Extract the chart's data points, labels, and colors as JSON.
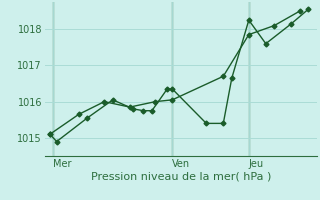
{
  "xlabel": "Pression niveau de la mer( hPa )",
  "bg_color": "#cef0ec",
  "grid_color": "#aadcd6",
  "line_color": "#1a5c2a",
  "vline_color": "#2d6e3e",
  "spine_color": "#2d6e3e",
  "text_color": "#2d6e3e",
  "ylim": [
    1014.5,
    1018.75
  ],
  "xlim": [
    0,
    16
  ],
  "yticks": [
    1015,
    1016,
    1017,
    1018
  ],
  "day_labels": [
    "Mer",
    "Ven",
    "Jeu"
  ],
  "day_positions": [
    0.5,
    7.5,
    12.0
  ],
  "vline_positions": [
    0.5,
    7.5,
    12.0
  ],
  "series1_x": [
    0.3,
    0.7,
    2.5,
    4.0,
    5.2,
    5.8,
    6.3,
    7.2,
    7.5,
    9.5,
    10.5,
    11.0,
    12.0,
    13.0,
    14.5,
    15.5
  ],
  "series1_y": [
    1015.1,
    1014.9,
    1015.55,
    1016.05,
    1015.8,
    1015.75,
    1015.75,
    1016.35,
    1016.35,
    1015.4,
    1015.4,
    1016.65,
    1018.25,
    1017.6,
    1018.15,
    1018.55
  ],
  "series2_x": [
    0.3,
    2.0,
    3.5,
    5.0,
    6.5,
    7.5,
    10.5,
    12.0,
    13.5,
    15.0
  ],
  "series2_y": [
    1015.1,
    1015.65,
    1016.0,
    1015.85,
    1016.0,
    1016.05,
    1016.7,
    1017.85,
    1018.1,
    1018.5
  ],
  "xlabel_fontsize": 8,
  "tick_fontsize": 7
}
